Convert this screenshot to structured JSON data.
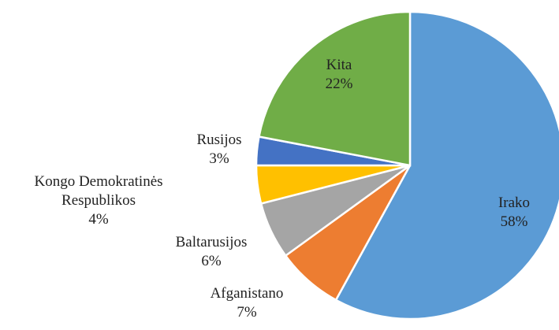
{
  "chart_data": {
    "type": "pie",
    "categories": [
      "Irako",
      "Afganistano",
      "Baltarusijos",
      "Kongo Demokratinės Respublikos",
      "Rusijos",
      "Kita"
    ],
    "values": [
      58,
      7,
      6,
      4,
      3,
      22
    ],
    "value_labels": [
      "58%",
      "7%",
      "6%",
      "4%",
      "3%",
      "22%"
    ],
    "colors": [
      "#5b9bd5",
      "#ed7d31",
      "#a5a5a5",
      "#ffc000",
      "#4472c4",
      "#70ad47"
    ]
  }
}
